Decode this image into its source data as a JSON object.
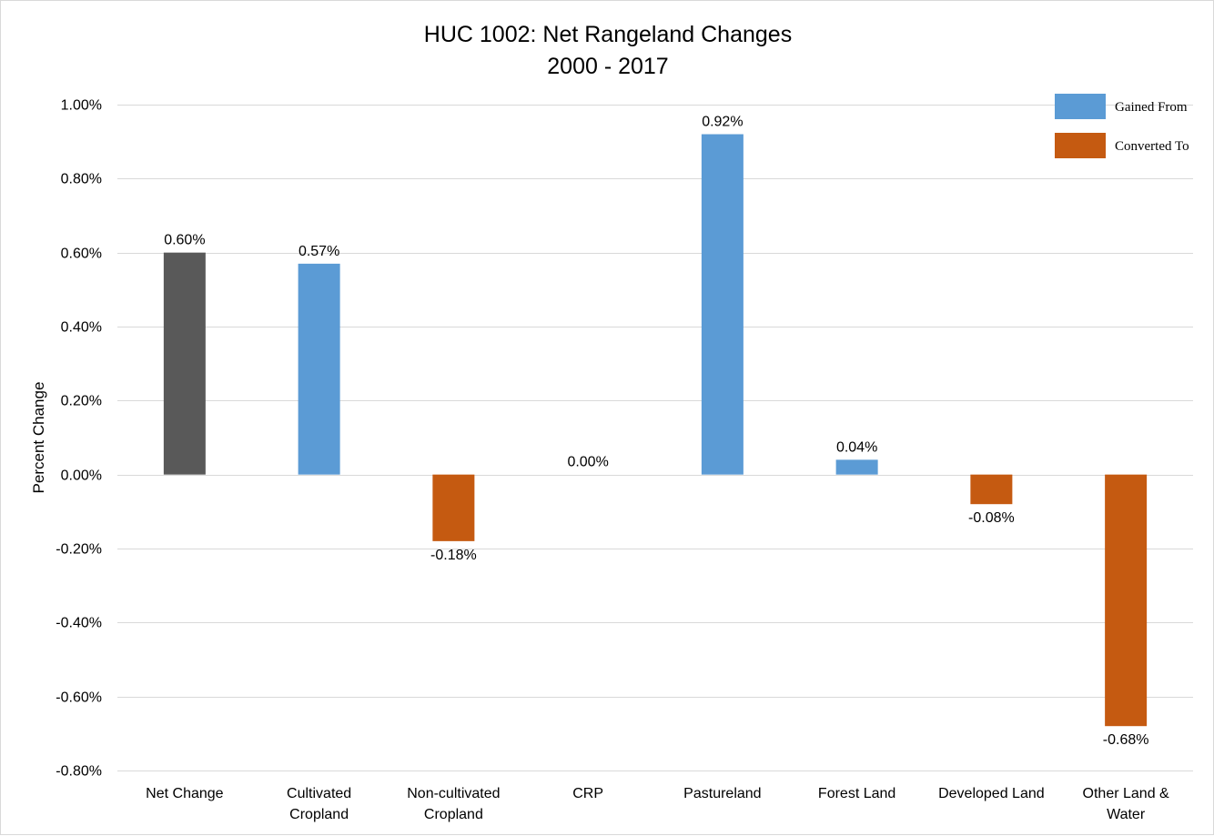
{
  "chart_data": {
    "type": "bar",
    "title": [
      "HUC 1002: Net Rangeland Changes",
      "2000 - 2017"
    ],
    "xlabel": "",
    "ylabel": "Percent Change",
    "ylim": [
      -0.8,
      1.0
    ],
    "ytick_step": 0.2,
    "grid": true,
    "legend_position": "top-right",
    "categories": [
      [
        "Net Change"
      ],
      [
        "Cultivated",
        "Cropland"
      ],
      [
        "Non-cultivated",
        "Cropland"
      ],
      [
        "CRP"
      ],
      [
        "Pastureland"
      ],
      [
        "Forest Land"
      ],
      [
        "Developed Land"
      ],
      [
        "Other Land &",
        "Water"
      ]
    ],
    "values": [
      0.6,
      0.57,
      -0.18,
      0.0,
      0.92,
      0.04,
      -0.08,
      -0.68
    ],
    "data_labels": [
      "0.60%",
      "0.57%",
      "-0.18%",
      "0.00%",
      "0.92%",
      "0.04%",
      "-0.08%",
      "-0.68%"
    ],
    "bar_kind": [
      "net",
      "gain",
      "loss",
      "gain",
      "gain",
      "gain",
      "loss",
      "loss"
    ],
    "colors": {
      "net": "#595959",
      "gain": "#5b9bd5",
      "loss": "#c55a11"
    },
    "legend": [
      {
        "label": "Gained From",
        "kind": "gain"
      },
      {
        "label": "Converted To",
        "kind": "loss"
      }
    ]
  }
}
